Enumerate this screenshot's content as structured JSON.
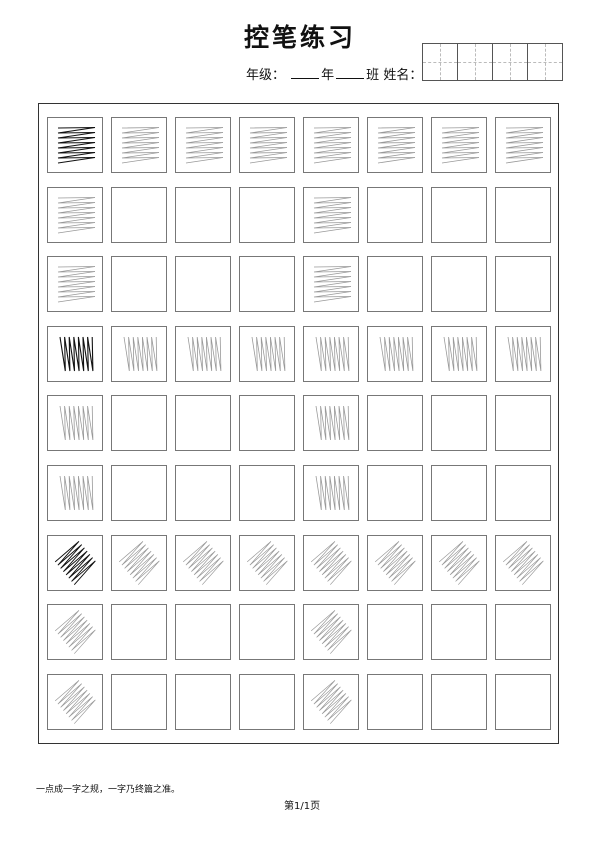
{
  "header": {
    "title": "控笔练习",
    "grade_label": "年级：",
    "year_label": "年",
    "class_label": "班",
    "name_label": "姓名：",
    "name_boxes": 4
  },
  "worksheet": {
    "columns": 8,
    "rows": [
      {
        "pattern": "horizontal-zigzag",
        "filled_columns": [
          0,
          1,
          2,
          3,
          4,
          5,
          6,
          7
        ]
      },
      {
        "pattern": "horizontal-zigzag",
        "filled_columns": [
          0,
          4
        ]
      },
      {
        "pattern": "horizontal-zigzag",
        "filled_columns": [
          0,
          4
        ]
      },
      {
        "pattern": "vertical-zigzag",
        "filled_columns": [
          0,
          1,
          2,
          3,
          4,
          5,
          6,
          7
        ]
      },
      {
        "pattern": "vertical-zigzag",
        "filled_columns": [
          0,
          4
        ]
      },
      {
        "pattern": "vertical-zigzag",
        "filled_columns": [
          0,
          4
        ]
      },
      {
        "pattern": "diagonal-zigzag",
        "filled_columns": [
          0,
          1,
          2,
          3,
          4,
          5,
          6,
          7
        ]
      },
      {
        "pattern": "diagonal-zigzag",
        "filled_columns": [
          0,
          4
        ]
      },
      {
        "pattern": "diagonal-zigzag",
        "filled_columns": [
          0,
          4
        ]
      }
    ],
    "example_color": "#111111",
    "trace_color": "#999999"
  },
  "footer": {
    "quote": "一点成一字之规，一字乃终篇之准。",
    "page": "第1/1页"
  }
}
